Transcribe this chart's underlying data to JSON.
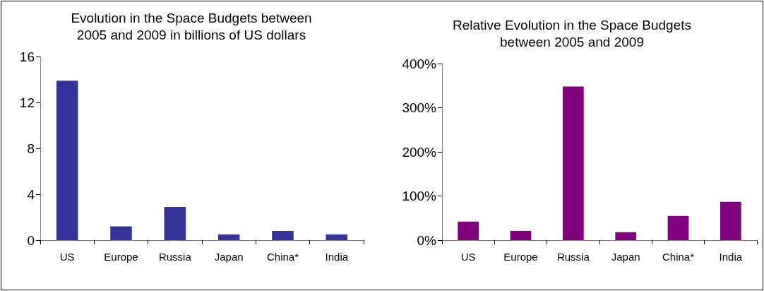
{
  "chart_data": [
    {
      "type": "bar",
      "title": "Evolution in the Space Budgets between\n2005 and 2009 in billions of US dollars",
      "categories": [
        "US",
        "Europe",
        "Russia",
        "Japan",
        "China*",
        "India"
      ],
      "values": [
        13.9,
        1.2,
        2.9,
        0.5,
        0.8,
        0.5
      ],
      "color": "#333399",
      "ylim": [
        0,
        16
      ],
      "yticks": [
        0,
        4,
        8,
        12,
        16
      ],
      "grid": false
    },
    {
      "type": "bar",
      "title": "Relative Evolution in the Space Budgets\nbetween 2005 and 2009",
      "categories": [
        "US",
        "Europe",
        "Russia",
        "Japan",
        "China*",
        "India"
      ],
      "values": [
        42,
        21,
        348,
        18,
        55,
        87
      ],
      "color": "#800080",
      "ylim": [
        0,
        400
      ],
      "yticks": [
        {
          "value": 0,
          "label": "0%"
        },
        {
          "value": 100,
          "label": "100%"
        },
        {
          "value": 200,
          "label": "200%"
        },
        {
          "value": 300,
          "label": "300%"
        },
        {
          "value": 400,
          "label": "400%"
        }
      ],
      "grid": false
    }
  ]
}
